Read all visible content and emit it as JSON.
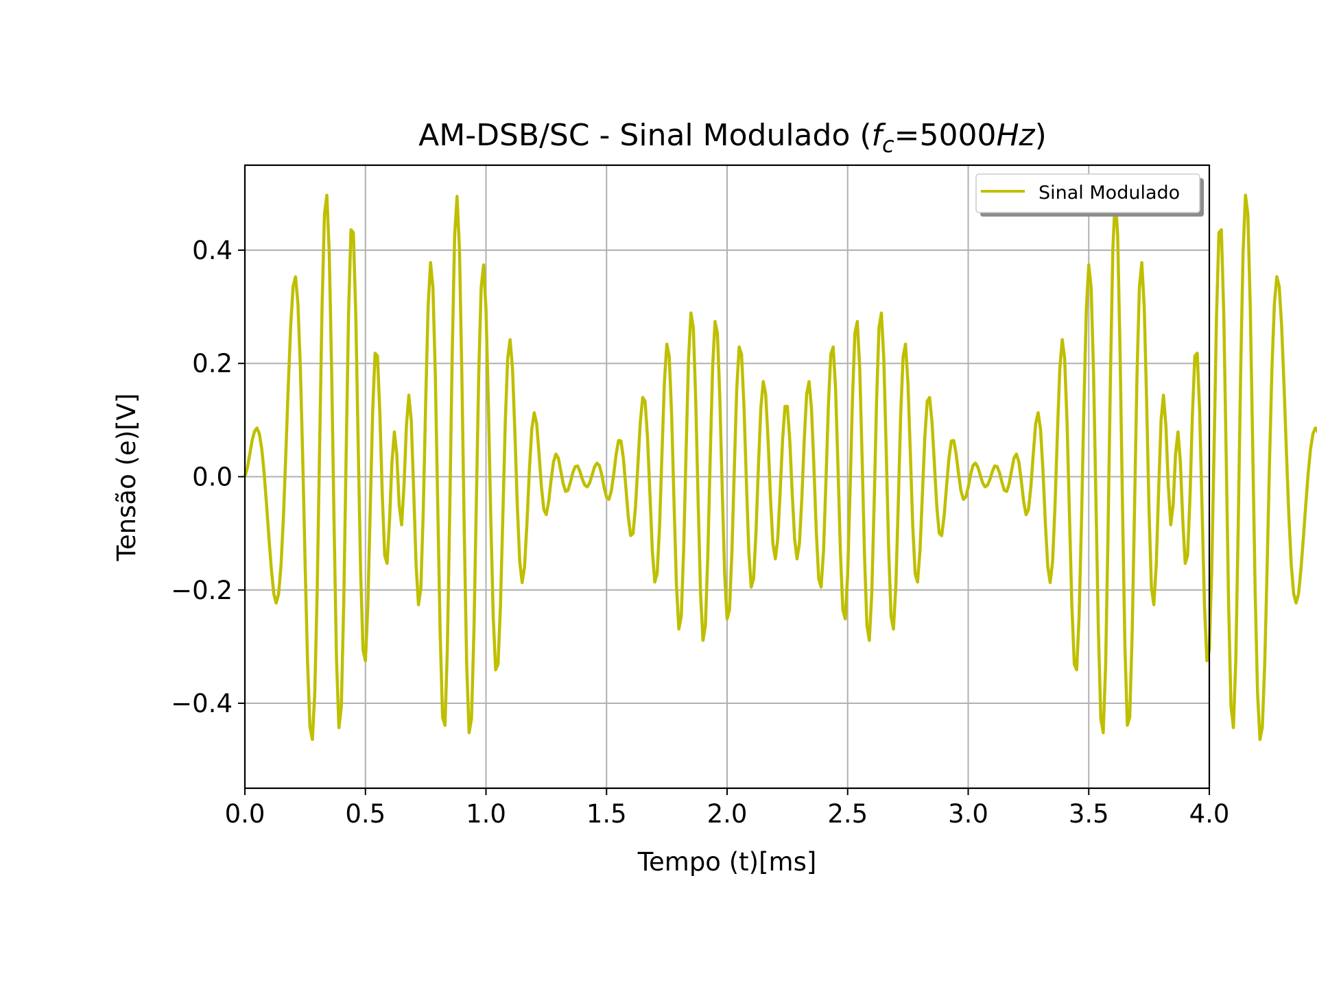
{
  "chart_data": {
    "type": "line",
    "title": "AM-DSB/SC - Sinal Modulado (",
    "title_math_f": "f",
    "title_math_sub": "c",
    "title_math_eq": "=5000",
    "title_math_unit": "Hz",
    "title_end": ")",
    "xlabel": "Tempo (t)[ms]",
    "ylabel": "Tensão (e)[V]",
    "xlim": [
      0.0,
      4.0
    ],
    "ylim": [
      -0.55,
      0.55
    ],
    "x_ticks": [
      0.0,
      0.5,
      1.0,
      1.5,
      2.0,
      2.5,
      3.0,
      3.5,
      4.0
    ],
    "x_tick_labels": [
      "0.0",
      "0.5",
      "1.0",
      "1.5",
      "2.0",
      "2.5",
      "3.0",
      "3.5",
      "4.0"
    ],
    "y_ticks": [
      0.4,
      0.2,
      0.0,
      -0.2,
      -0.4
    ],
    "y_tick_labels": [
      "0.4",
      "0.2",
      "0.0",
      "−0.2",
      "−0.4"
    ],
    "grid": true,
    "legend_position": "top-right",
    "series": [
      {
        "name": "Sinal Modulado",
        "color": "#bfbf00",
        "carrier_frequency_hz": 5000,
        "x_start": 0.0,
        "x_step": 0.01,
        "y": [
          0.0,
          0.015,
          0.039,
          0.064,
          0.08,
          0.086,
          0.076,
          0.049,
          0.006,
          -0.05,
          -0.109,
          -0.164,
          -0.207,
          -0.223,
          -0.207,
          -0.156,
          -0.07,
          0.042,
          0.16,
          0.266,
          0.336,
          0.353,
          0.306,
          0.194,
          0.031,
          -0.157,
          -0.328,
          -0.442,
          -0.464,
          -0.381,
          -0.199,
          0.053,
          0.298,
          0.463,
          0.497,
          0.395,
          0.184,
          -0.085,
          -0.322,
          -0.443,
          -0.406,
          -0.224,
          0.038,
          0.288,
          0.436,
          0.431,
          0.286,
          0.055,
          -0.166,
          -0.306,
          -0.325,
          -0.228,
          -0.057,
          0.116,
          0.218,
          0.213,
          0.11,
          -0.034,
          -0.139,
          -0.153,
          -0.077,
          0.026,
          0.079,
          0.04,
          -0.05,
          -0.085,
          -0.016,
          0.09,
          0.144,
          0.1,
          -0.022,
          -0.155,
          -0.226,
          -0.196,
          -0.059,
          0.134,
          0.301,
          0.378,
          0.334,
          0.178,
          -0.052,
          -0.278,
          -0.425,
          -0.439,
          -0.299,
          -0.053,
          0.219,
          0.426,
          0.495,
          0.402,
          0.178,
          -0.099,
          -0.333,
          -0.452,
          -0.427,
          -0.273,
          -0.045,
          0.182,
          0.334,
          0.374,
          0.296,
          0.128,
          -0.075,
          -0.247,
          -0.341,
          -0.331,
          -0.228,
          -0.068,
          0.096,
          0.209,
          0.242,
          0.191,
          0.077,
          -0.052,
          -0.15,
          -0.187,
          -0.159,
          -0.082,
          0.012,
          0.084,
          0.113,
          0.094,
          0.041,
          -0.018,
          -0.058,
          -0.067,
          -0.044,
          -0.006,
          0.026,
          0.04,
          0.033,
          0.011,
          -0.012,
          -0.026,
          -0.024,
          -0.01,
          0.007,
          0.018,
          0.019,
          0.009,
          -0.005,
          -0.015,
          -0.018,
          -0.011,
          0.003,
          0.017,
          0.024,
          0.02,
          0.004,
          -0.019,
          -0.036,
          -0.04,
          -0.025,
          0.005,
          0.04,
          0.064,
          0.063,
          0.032,
          -0.018,
          -0.07,
          -0.104,
          -0.1,
          -0.054,
          0.021,
          0.096,
          0.14,
          0.133,
          0.069,
          -0.031,
          -0.131,
          -0.186,
          -0.171,
          -0.087,
          0.042,
          0.167,
          0.234,
          0.212,
          0.11,
          -0.047,
          -0.192,
          -0.269,
          -0.246,
          -0.126,
          0.046,
          0.208,
          0.289,
          0.263,
          0.134,
          -0.045,
          -0.207,
          -0.289,
          -0.263,
          -0.14,
          0.034,
          0.193,
          0.274,
          0.253,
          0.138,
          -0.025,
          -0.173,
          -0.251,
          -0.235,
          -0.133,
          0.016,
          0.155,
          0.229,
          0.216,
          0.125,
          -0.008,
          -0.131,
          -0.195,
          -0.18,
          -0.097,
          0.019,
          0.121,
          0.168,
          0.146,
          0.065,
          -0.038,
          -0.118,
          -0.145,
          -0.11,
          -0.028,
          0.064,
          0.124,
          0.124,
          0.064,
          -0.028,
          -0.11,
          -0.145,
          -0.118,
          -0.038,
          0.065,
          0.146,
          0.168,
          0.121,
          0.019,
          -0.097,
          -0.18,
          -0.195,
          -0.131,
          -0.008,
          0.125,
          0.216,
          0.229,
          0.155,
          0.016,
          -0.133,
          -0.235,
          -0.251,
          -0.173,
          -0.025,
          0.138,
          0.253,
          0.274,
          0.193,
          0.034,
          -0.14,
          -0.263,
          -0.289,
          -0.207,
          -0.045,
          0.134,
          0.263,
          0.289,
          0.208,
          0.046,
          -0.126,
          -0.246,
          -0.269,
          -0.192,
          -0.047,
          0.11,
          0.212,
          0.234,
          0.167,
          0.042,
          -0.087,
          -0.171,
          -0.186,
          -0.131,
          -0.031,
          0.069,
          0.133,
          0.14,
          0.096,
          0.021,
          -0.054,
          -0.1,
          -0.104,
          -0.07,
          -0.018,
          0.032,
          0.063,
          0.064,
          0.04,
          0.005,
          -0.025,
          -0.04,
          -0.036,
          -0.019,
          0.004,
          0.02,
          0.024,
          0.017,
          0.003,
          -0.011,
          -0.018,
          -0.015,
          -0.005,
          0.009,
          0.019,
          0.018,
          0.007,
          -0.01,
          -0.024,
          -0.026,
          -0.012,
          0.011,
          0.033,
          0.04,
          0.026,
          -0.006,
          -0.044,
          -0.067,
          -0.058,
          -0.018,
          0.041,
          0.094,
          0.113,
          0.084,
          0.012,
          -0.082,
          -0.159,
          -0.187,
          -0.15,
          -0.052,
          0.077,
          0.191,
          0.242,
          0.209,
          0.096,
          -0.068,
          -0.228,
          -0.331,
          -0.341,
          -0.247,
          -0.075,
          0.128,
          0.296,
          0.374,
          0.334,
          0.182,
          -0.045,
          -0.273,
          -0.427,
          -0.452,
          -0.333,
          -0.099,
          0.178,
          0.402,
          0.495,
          0.426,
          0.219,
          -0.053,
          -0.299,
          -0.439,
          -0.425,
          -0.278,
          -0.052,
          0.178,
          0.334,
          0.378,
          0.301,
          0.134,
          -0.059,
          -0.196,
          -0.226,
          -0.155,
          -0.022,
          0.1,
          0.144,
          0.09,
          -0.016,
          -0.085,
          -0.05,
          0.04,
          0.079,
          0.026,
          -0.077,
          -0.153,
          -0.139,
          -0.034,
          0.11,
          0.213,
          0.218,
          0.116,
          -0.057,
          -0.228,
          -0.325,
          -0.306,
          -0.166,
          0.055,
          0.286,
          0.431,
          0.436,
          0.288,
          0.038,
          -0.224,
          -0.406,
          -0.443,
          -0.322,
          -0.085,
          0.184,
          0.395,
          0.497,
          0.463,
          0.298,
          0.053,
          -0.199,
          -0.381,
          -0.464,
          -0.442,
          -0.328,
          -0.157,
          0.031,
          0.194,
          0.306,
          0.353,
          0.336,
          0.266,
          0.16,
          0.042,
          -0.07,
          -0.156,
          -0.207,
          -0.223,
          -0.207,
          -0.164,
          -0.109,
          -0.05,
          0.006,
          0.049,
          0.076,
          0.086,
          0.08,
          0.064,
          0.039,
          0.015,
          0.0
        ]
      }
    ]
  }
}
